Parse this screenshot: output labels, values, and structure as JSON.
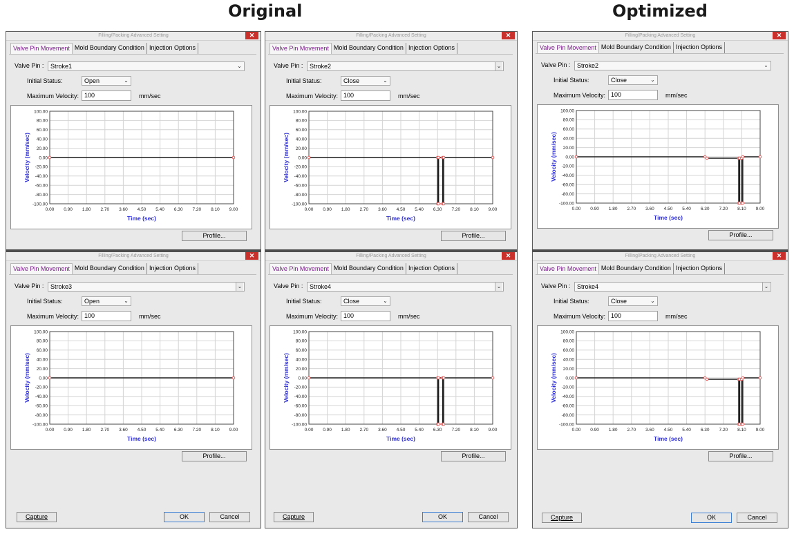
{
  "headings": {
    "original": "Original",
    "optimized": "Optimized"
  },
  "dialog": {
    "title": "Filling/Packing Advanced Setting",
    "close_glyph": "✕",
    "capture_label": "Capture",
    "ok_label": "OK",
    "cancel_label": "Cancel"
  },
  "common": {
    "tabs": [
      "Valve Pin Movement",
      "Mold Boundary Condition",
      "Injection Options"
    ],
    "valve_pin_label": "Valve Pin :",
    "initial_status_label": "Initial Status:",
    "max_velocity_label": "Maximum Velocity:",
    "velocity_unit": "mm/sec",
    "profile_label": "Profile...",
    "dropdown_glyph": "⌄"
  },
  "panels": [
    {
      "valve_pin": "Stroke1",
      "initial_status": "Open",
      "max_velocity": "100"
    },
    {
      "valve_pin": "Stroke2",
      "initial_status": "Close",
      "max_velocity": "100"
    },
    {
      "valve_pin": "Stroke2",
      "initial_status": "Close",
      "max_velocity": "100"
    },
    {
      "valve_pin": "Stroke3",
      "initial_status": "Open",
      "max_velocity": "100"
    },
    {
      "valve_pin": "Stroke4",
      "initial_status": "Close",
      "max_velocity": "100"
    },
    {
      "valve_pin": "Stroke4",
      "initial_status": "Close",
      "max_velocity": "100"
    }
  ],
  "colors": {
    "accent_tab": "#7a1e8c",
    "axis_label": "#2b2bd4",
    "marker": "#e05050",
    "close_button": "#c9302c"
  },
  "chart_data": [
    {
      "type": "line",
      "xlabel": "Time (sec)",
      "ylabel": "Velocity (mm/sec)",
      "xlim": [
        0,
        9
      ],
      "ylim": [
        -100,
        100
      ],
      "x_ticks": [
        "0.00",
        "0.90",
        "1.80",
        "2.70",
        "3.60",
        "4.50",
        "5.40",
        "6.30",
        "7.20",
        "8.10",
        "9.00"
      ],
      "y_ticks": [
        "100.00",
        "80.00",
        "60.00",
        "40.00",
        "20.00",
        "0.00",
        "-20.00",
        "-40.00",
        "-60.00",
        "-80.00",
        "-100.00"
      ],
      "grid": true,
      "series": [
        {
          "x": [
            0,
            9
          ],
          "y": [
            0,
            0
          ]
        }
      ]
    },
    {
      "type": "line",
      "xlabel": "Time (sec)",
      "ylabel": "Velocity (mm/sec)",
      "xlim": [
        0,
        9
      ],
      "ylim": [
        -100,
        100
      ],
      "x_ticks": [
        "0.00",
        "0.90",
        "1.80",
        "2.70",
        "3.60",
        "4.50",
        "5.40",
        "6.30",
        "7.20",
        "8.10",
        "9.00"
      ],
      "y_ticks": [
        "100.00",
        "80.00",
        "60.00",
        "40.00",
        "20.00",
        "0.00",
        "-20.00",
        "-40.00",
        "-60.00",
        "-80.00",
        "-100.00"
      ],
      "grid": true,
      "series": [
        {
          "x": [
            0,
            6.3,
            6.3,
            6.35,
            6.35,
            6.55,
            6.55,
            6.6,
            6.6,
            9
          ],
          "y": [
            0,
            0,
            -100,
            -100,
            0,
            0,
            -100,
            -100,
            0,
            0
          ]
        }
      ]
    },
    {
      "type": "line",
      "xlabel": "Time (sec)",
      "ylabel": "Velocity (mm/sec)",
      "xlim": [
        0,
        9
      ],
      "ylim": [
        -100,
        100
      ],
      "x_ticks": [
        "0.00",
        "0.90",
        "1.80",
        "2.70",
        "3.60",
        "4.50",
        "5.40",
        "6.30",
        "7.20",
        "8.10",
        "9.00"
      ],
      "y_ticks": [
        "100.00",
        "80.00",
        "60.00",
        "40.00",
        "20.00",
        "0.00",
        "-20.00",
        "-40.00",
        "-60.00",
        "-80.00",
        "-100.00"
      ],
      "grid": true,
      "series": [
        {
          "x": [
            0,
            6.3,
            6.4,
            7.95,
            7.95,
            8.0,
            8.0,
            8.1,
            8.1,
            8.15,
            8.15,
            9
          ],
          "y": [
            0,
            0,
            -3,
            -3,
            -100,
            -100,
            -3,
            -3,
            -100,
            -100,
            0,
            0
          ]
        }
      ]
    },
    {
      "type": "line",
      "xlabel": "Time (sec)",
      "ylabel": "Velocity (mm/sec)",
      "xlim": [
        0,
        9
      ],
      "ylim": [
        -100,
        100
      ],
      "x_ticks": [
        "0.00",
        "0.90",
        "1.80",
        "2.70",
        "3.60",
        "4.50",
        "5.40",
        "6.30",
        "7.20",
        "8.10",
        "9.00"
      ],
      "y_ticks": [
        "100.00",
        "80.00",
        "60.00",
        "40.00",
        "20.00",
        "0.00",
        "-20.00",
        "-40.00",
        "-60.00",
        "-80.00",
        "-100.00"
      ],
      "grid": true,
      "series": [
        {
          "x": [
            0,
            9
          ],
          "y": [
            0,
            0
          ]
        }
      ]
    },
    {
      "type": "line",
      "xlabel": "Time (sec)",
      "ylabel": "Velocity (mm/sec)",
      "xlim": [
        0,
        9
      ],
      "ylim": [
        -100,
        100
      ],
      "x_ticks": [
        "0.00",
        "0.90",
        "1.80",
        "2.70",
        "3.60",
        "4.50",
        "5.40",
        "6.30",
        "7.20",
        "8.10",
        "9.00"
      ],
      "y_ticks": [
        "100.00",
        "80.00",
        "60.00",
        "40.00",
        "20.00",
        "0.00",
        "-20.00",
        "-40.00",
        "-60.00",
        "-80.00",
        "-100.00"
      ],
      "grid": true,
      "series": [
        {
          "x": [
            0,
            6.3,
            6.3,
            6.35,
            6.35,
            6.55,
            6.55,
            6.6,
            6.6,
            9
          ],
          "y": [
            0,
            0,
            -100,
            -100,
            0,
            0,
            -100,
            -100,
            0,
            0
          ]
        }
      ]
    },
    {
      "type": "line",
      "xlabel": "Time (sec)",
      "ylabel": "Velocity (mm/sec)",
      "xlim": [
        0,
        9
      ],
      "ylim": [
        -100,
        100
      ],
      "x_ticks": [
        "0.00",
        "0.90",
        "1.80",
        "2.70",
        "3.60",
        "4.50",
        "5.40",
        "6.30",
        "7.20",
        "8.10",
        "9.00"
      ],
      "y_ticks": [
        "100.00",
        "80.00",
        "60.00",
        "40.00",
        "20.00",
        "0.00",
        "-20.00",
        "-40.00",
        "-60.00",
        "-80.00",
        "-100.00"
      ],
      "grid": true,
      "series": [
        {
          "x": [
            0,
            6.3,
            6.4,
            7.95,
            7.95,
            8.0,
            8.0,
            8.1,
            8.1,
            8.15,
            8.15,
            9
          ],
          "y": [
            0,
            0,
            -3,
            -3,
            -100,
            -100,
            -3,
            -3,
            -100,
            -100,
            0,
            0
          ]
        }
      ]
    }
  ]
}
